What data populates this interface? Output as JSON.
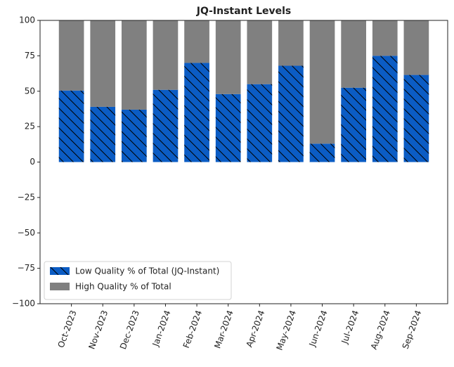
{
  "chart_data": {
    "type": "stacked_bar",
    "title": "JQ-Instant Levels",
    "categories": [
      "Oct-2023",
      "Nov-2023",
      "Dec-2023",
      "Jan-2024",
      "Feb-2024",
      "Mar-2024",
      "Apr-2024",
      "May-2024",
      "Jun-2024",
      "Jul-2024",
      "Aug-2024",
      "Sep-2024"
    ],
    "series": [
      {
        "name": "Low Quality % of Total (JQ-Instant)",
        "color": "#0b5cc4",
        "hatch": true,
        "values": [
          50.5,
          39,
          37,
          51,
          70,
          48,
          55,
          68,
          13,
          52.5,
          75,
          61.5
        ]
      },
      {
        "name": "High Quality % of Total",
        "color": "#808080",
        "hatch": false,
        "values": [
          49.5,
          61,
          63,
          49,
          30,
          52,
          45,
          32,
          87,
          47.5,
          25,
          38.5
        ]
      }
    ],
    "ylim": [
      -100,
      100
    ],
    "yticks": [
      {
        "value": -100,
        "label": "−100"
      },
      {
        "value": -75,
        "label": "−75"
      },
      {
        "value": -50,
        "label": "−50"
      },
      {
        "value": -25,
        "label": "−25"
      },
      0,
      25,
      50,
      75,
      100
    ],
    "legend": "lower left"
  }
}
